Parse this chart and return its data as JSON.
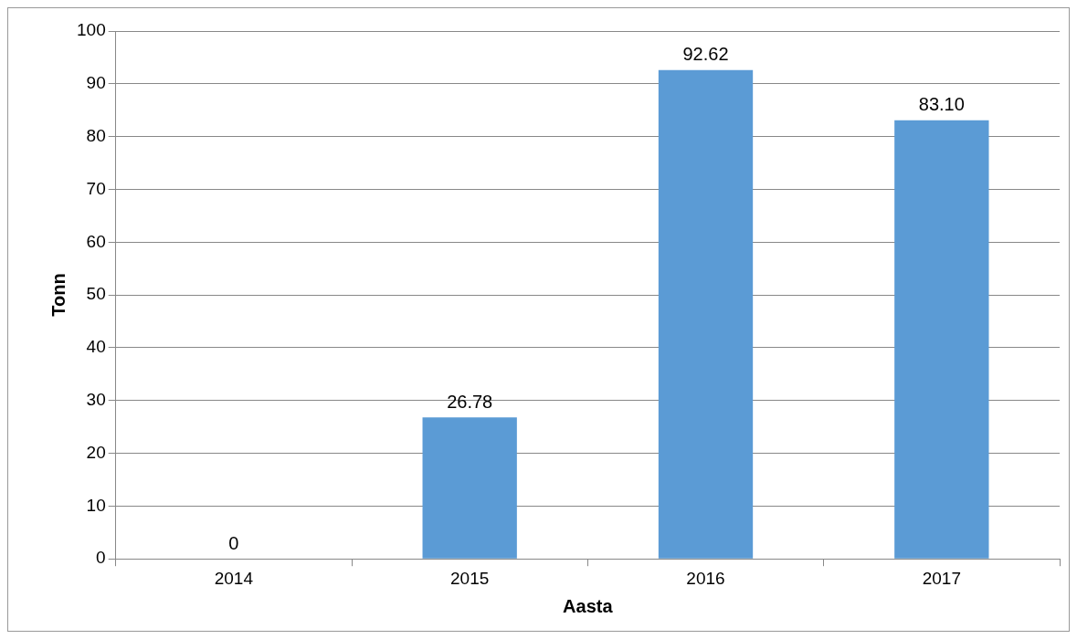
{
  "chart_data": {
    "type": "bar",
    "categories": [
      "2014",
      "2015",
      "2016",
      "2017"
    ],
    "values": [
      0,
      26.78,
      92.62,
      83.1
    ],
    "value_labels": [
      "0",
      "26.78",
      "92.62",
      "83.10"
    ],
    "color": "#5b9bd5",
    "xlabel": "Aasta",
    "ylabel": "Tonn",
    "ylim": [
      0,
      100
    ],
    "yticks": [
      0,
      10,
      20,
      30,
      40,
      50,
      60,
      70,
      80,
      90,
      100
    ],
    "grid": "y",
    "legend": false
  }
}
